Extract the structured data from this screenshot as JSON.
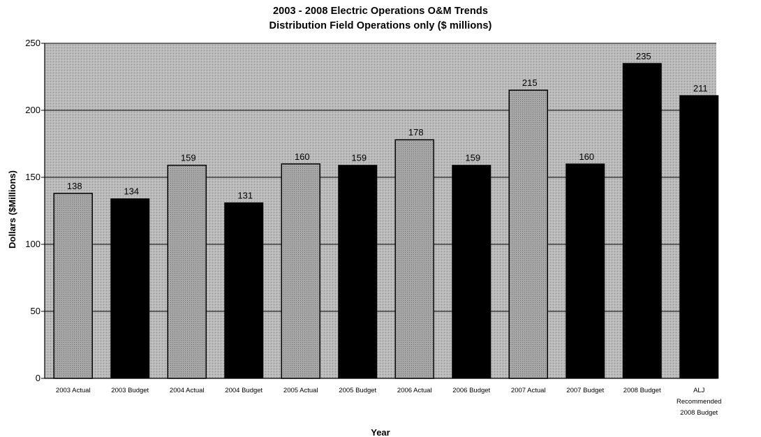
{
  "chart_data": {
    "type": "bar",
    "title": "2003 - 2008 Electric Operations O&M Trends",
    "subtitle": "Distribution Field Operations only ($ millions)",
    "xlabel": "Year",
    "ylabel": "Dollars ($Millions)",
    "ylim": [
      0,
      250
    ],
    "yticks": [
      0,
      50,
      100,
      150,
      200,
      250
    ],
    "ytick_labels": [
      "0",
      "50",
      "100",
      "150",
      "200",
      "250"
    ],
    "grid": true,
    "legend": "none",
    "categories": [
      "2003 Actual",
      "2003 Budget",
      "2004 Actual",
      "2004 Budget",
      "2005 Actual",
      "2005 Budget",
      "2006 Actual",
      "2006 Budget",
      "2007 Actual",
      "2007 Budget",
      "2008 Budget",
      "ALJ Recommended 2008 Budget"
    ],
    "category_lines": [
      [
        "2003 Actual"
      ],
      [
        "2003 Budget"
      ],
      [
        "2004 Actual"
      ],
      [
        "2004 Budget"
      ],
      [
        "2005 Actual"
      ],
      [
        "2005 Budget"
      ],
      [
        "2006 Actual"
      ],
      [
        "2006 Budget"
      ],
      [
        "2007 Actual"
      ],
      [
        "2007 Budget"
      ],
      [
        "2008 Budget"
      ],
      [
        "ALJ",
        "Recommended",
        "2008 Budget"
      ]
    ],
    "values": [
      138,
      134,
      159,
      131,
      160,
      159,
      178,
      159,
      215,
      160,
      235,
      211
    ],
    "bar_styles": [
      "actual",
      "budget",
      "actual",
      "budget",
      "actual",
      "budget",
      "actual",
      "budget",
      "actual",
      "budget",
      "budget",
      "budget"
    ],
    "colors": {
      "actual": "#9a9a9a",
      "budget": "#000000",
      "plot_bg": "#b9b9b9",
      "grid": "#000000"
    }
  }
}
